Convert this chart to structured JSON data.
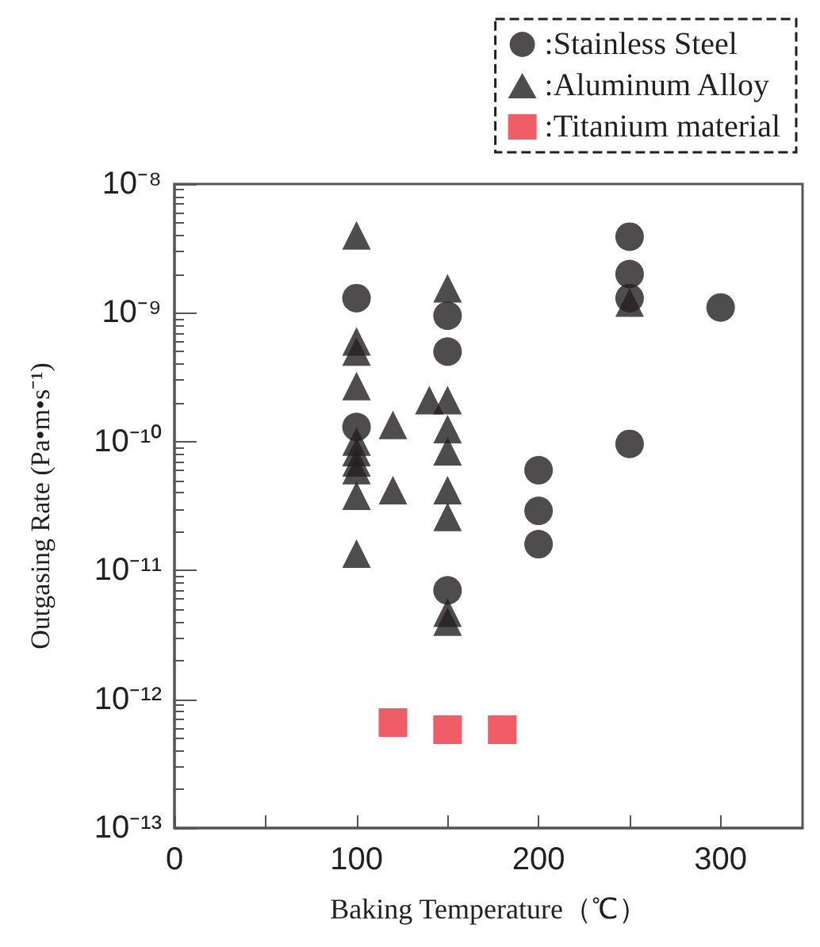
{
  "chart_data": {
    "type": "scatter",
    "xlabel": "Baking Temperature（℃）",
    "ylabel": "Outgasing Rate (Pa•m•s⁻¹)",
    "log": "y",
    "legend": "top right",
    "grid": false,
    "xlim": [
      0,
      345
    ],
    "xticks": [
      0,
      {
        "value": 50,
        "label": null
      },
      100,
      {
        "value": 150,
        "label": null
      },
      200,
      {
        "value": 250,
        "label": null
      },
      300
    ],
    "ylim": [
      1e-13,
      1e-08
    ],
    "yticks": [
      {
        "value": 1e-13,
        "label": "10⁻¹³"
      },
      {
        "value": 1e-12,
        "label": "10⁻¹²"
      },
      {
        "value": 1e-11,
        "label": "10⁻¹¹"
      },
      {
        "value": 1e-10,
        "label": "10⁻¹⁰"
      },
      {
        "value": 1e-09,
        "label": "10⁻⁹"
      },
      {
        "value": 1e-08,
        "label": "10⁻⁸"
      }
    ],
    "series": [
      {
        "name": ":Stainless Steel",
        "color": "#231f20",
        "marker": "circle",
        "x": [
          100,
          100,
          150,
          150,
          150,
          200,
          200,
          200,
          250,
          250,
          250,
          250,
          300
        ],
        "values": [
          1.3e-09,
          1.3e-10,
          9.5e-10,
          5e-10,
          7e-12,
          6e-11,
          2.9e-11,
          1.6e-11,
          3.9e-09,
          2e-09,
          1.3e-09,
          9.6e-11,
          1.1e-09
        ]
      },
      {
        "name": ":Aluminum Alloy",
        "color": "#231f20",
        "marker": "triangle",
        "x": [
          100,
          100,
          100,
          100,
          100,
          100,
          100,
          100,
          100,
          100,
          120,
          120,
          140,
          150,
          150,
          150,
          150,
          150,
          150,
          150,
          150,
          250
        ],
        "values": [
          4e-09,
          6e-10,
          5e-10,
          2.7e-10,
          1e-10,
          8.3e-11,
          6.9e-11,
          6e-11,
          3.8e-11,
          1.35e-11,
          1.35e-10,
          4.2e-11,
          2.1e-10,
          1.55e-09,
          2.1e-10,
          1.25e-10,
          8.4e-11,
          4.2e-11,
          2.6e-11,
          4.7e-12,
          4e-12,
          1.2e-09
        ]
      },
      {
        "name": ":Titanium material",
        "color": "#ee3440",
        "marker": "square",
        "x": [
          120,
          150,
          180
        ],
        "values": [
          6.6e-13,
          5.8e-13,
          5.8e-13
        ]
      }
    ]
  }
}
